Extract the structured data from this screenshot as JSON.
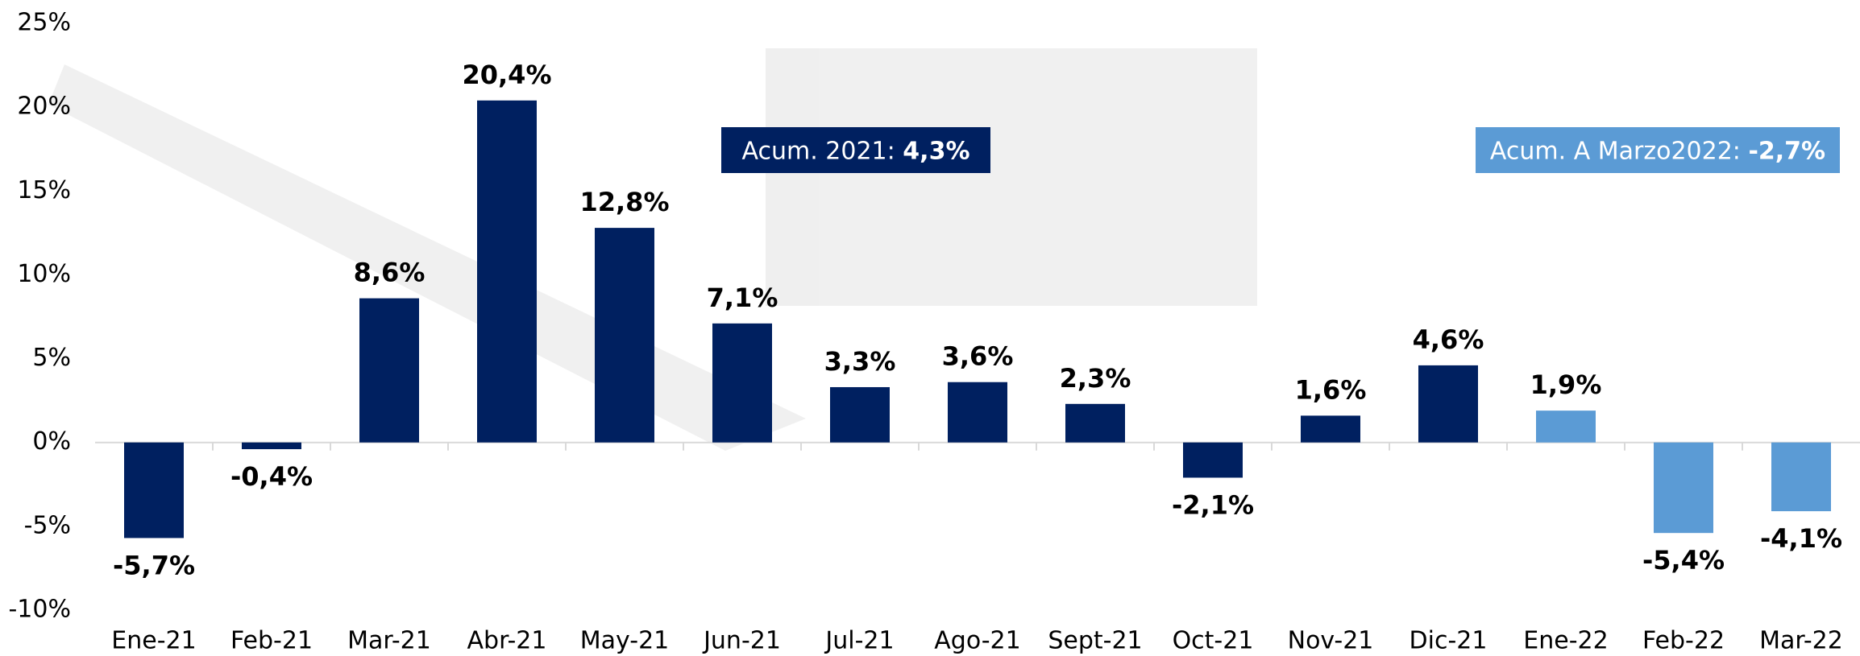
{
  "chart_data": {
    "type": "bar",
    "categories": [
      "Ene-21",
      "Feb-21",
      "Mar-21",
      "Abr-21",
      "May-21",
      "Jun-21",
      "Jul-21",
      "Ago-21",
      "Sept-21",
      "Oct-21",
      "Nov-21",
      "Dic-21",
      "Ene-22",
      "Feb-22",
      "Mar-22"
    ],
    "values": [
      -5.7,
      -0.4,
      8.6,
      20.4,
      12.8,
      7.1,
      3.3,
      3.6,
      2.3,
      -2.1,
      1.6,
      4.6,
      1.9,
      -5.4,
      -4.1
    ],
    "value_labels": [
      "-5,7%",
      "-0,4%",
      "8,6%",
      "20,4%",
      "12,8%",
      "7,1%",
      "3,3%",
      "3,6%",
      "2,3%",
      "-2,1%",
      "1,6%",
      "4,6%",
      "1,9%",
      "-5,4%",
      "-4,1%"
    ],
    "colors": [
      "#002060",
      "#002060",
      "#002060",
      "#002060",
      "#002060",
      "#002060",
      "#002060",
      "#002060",
      "#002060",
      "#002060",
      "#002060",
      "#002060",
      "#5b9bd5",
      "#5b9bd5",
      "#5b9bd5"
    ],
    "ylim": [
      -10,
      25
    ],
    "yticks": [
      {
        "value": -10,
        "label": "-10%"
      },
      {
        "value": -5,
        "label": "-5%"
      },
      {
        "value": 0,
        "label": "0%"
      },
      {
        "value": 5,
        "label": "5%"
      },
      {
        "value": 10,
        "label": "10%"
      },
      {
        "value": 15,
        "label": "15%"
      },
      {
        "value": 20,
        "label": "20%"
      },
      {
        "value": 25,
        "label": "25%"
      }
    ],
    "annotations": [
      {
        "text": "Acum. 2021: ",
        "value_text": "4,3%",
        "color": "#002060"
      },
      {
        "text": "Acum. A Marzo2022: ",
        "value_text": "-2,7%",
        "color": "#5b9bd5"
      }
    ]
  }
}
